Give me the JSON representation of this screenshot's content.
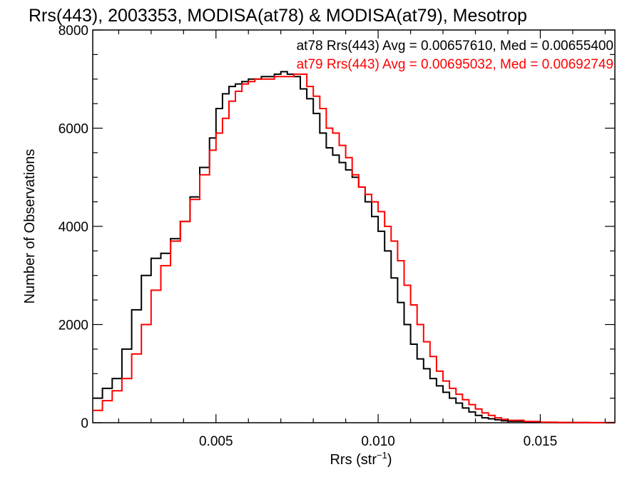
{
  "colors": {
    "at78": "#000000",
    "at79": "#ff0000",
    "axis": "#000000",
    "background": "#ffffff"
  },
  "chart_data": {
    "type": "line",
    "title": "Rrs(443), 2003353, MODISA(at78) & MODISA(at79), Mesotrop",
    "xlabel_main": "Rrs (str",
    "xlabel_sup": "−1",
    "xlabel_end": ")",
    "ylabel": "Number of Observations",
    "xlim": [
      0.0012,
      0.0173
    ],
    "ylim": [
      0,
      8000
    ],
    "x_ticks": [
      {
        "value": 0.005,
        "label": "0.005"
      },
      {
        "value": 0.01,
        "label": "0.010"
      },
      {
        "value": 0.015,
        "label": "0.015"
      }
    ],
    "y_ticks": [
      {
        "value": 0,
        "label": "0"
      },
      {
        "value": 2000,
        "label": "2000"
      },
      {
        "value": 4000,
        "label": "4000"
      },
      {
        "value": 6000,
        "label": "6000"
      },
      {
        "value": 8000,
        "label": "8000"
      }
    ],
    "grid": false,
    "legend_position": "top-right",
    "series": [
      {
        "name": "at78",
        "legend": "at78 Rrs(443) Avg = 0.00657610, Med = 0.00655400",
        "color": "#000000",
        "step": true,
        "x": [
          0.0012,
          0.0015,
          0.0018,
          0.0021,
          0.0024,
          0.0027,
          0.003,
          0.0033,
          0.0036,
          0.0039,
          0.0042,
          0.0045,
          0.0048,
          0.005,
          0.0052,
          0.0054,
          0.0056,
          0.0058,
          0.006,
          0.0062,
          0.0064,
          0.0066,
          0.0068,
          0.007,
          0.0072,
          0.0074,
          0.0076,
          0.0078,
          0.008,
          0.0082,
          0.0084,
          0.0086,
          0.0088,
          0.009,
          0.0092,
          0.0094,
          0.0096,
          0.0098,
          0.01,
          0.0102,
          0.0104,
          0.0106,
          0.0108,
          0.011,
          0.0112,
          0.0114,
          0.0116,
          0.0118,
          0.012,
          0.0122,
          0.0124,
          0.0126,
          0.0128,
          0.013,
          0.0132,
          0.0134,
          0.0136,
          0.0138,
          0.014,
          0.0145,
          0.015,
          0.0155,
          0.016,
          0.0165,
          0.017,
          0.0173
        ],
        "y": [
          500,
          700,
          900,
          1500,
          2300,
          3000,
          3350,
          3450,
          3750,
          4100,
          4600,
          5200,
          5800,
          6400,
          6700,
          6850,
          6900,
          6950,
          7000,
          7000,
          7050,
          7050,
          7100,
          7150,
          7100,
          7050,
          6800,
          6600,
          6300,
          5900,
          5600,
          5450,
          5300,
          5150,
          5000,
          4800,
          4500,
          4200,
          3900,
          3500,
          2950,
          2450,
          2000,
          1600,
          1300,
          1100,
          900,
          750,
          620,
          500,
          400,
          300,
          220,
          150,
          100,
          80,
          60,
          40,
          30,
          15,
          8,
          5,
          3,
          2,
          1,
          1
        ]
      },
      {
        "name": "at79",
        "legend": "at79 Rrs(443) Avg = 0.00695032, Med = 0.00692749",
        "color": "#ff0000",
        "step": true,
        "x": [
          0.0012,
          0.0015,
          0.0018,
          0.0021,
          0.0024,
          0.0027,
          0.003,
          0.0033,
          0.0036,
          0.0039,
          0.0042,
          0.0045,
          0.0048,
          0.005,
          0.0052,
          0.0054,
          0.0056,
          0.0058,
          0.006,
          0.0062,
          0.0064,
          0.0066,
          0.0068,
          0.007,
          0.0072,
          0.0074,
          0.0076,
          0.0078,
          0.008,
          0.0082,
          0.0084,
          0.0086,
          0.0088,
          0.009,
          0.0092,
          0.0094,
          0.0096,
          0.0098,
          0.01,
          0.0102,
          0.0104,
          0.0106,
          0.0108,
          0.011,
          0.0112,
          0.0114,
          0.0116,
          0.0118,
          0.012,
          0.0122,
          0.0124,
          0.0126,
          0.0128,
          0.013,
          0.0132,
          0.0134,
          0.0136,
          0.0138,
          0.014,
          0.0145,
          0.015,
          0.0155,
          0.016,
          0.0165,
          0.017,
          0.0173
        ],
        "y": [
          250,
          450,
          650,
          900,
          1400,
          2000,
          2700,
          3200,
          3700,
          4100,
          4550,
          5050,
          5550,
          5900,
          6200,
          6550,
          6750,
          6900,
          6950,
          7000,
          7000,
          7000,
          7050,
          7050,
          7050,
          7100,
          7100,
          6850,
          6650,
          6400,
          6000,
          5900,
          5650,
          5400,
          5050,
          4800,
          4650,
          4500,
          4300,
          4000,
          3700,
          3300,
          2800,
          2400,
          2000,
          1650,
          1350,
          1050,
          850,
          700,
          580,
          470,
          370,
          280,
          200,
          150,
          100,
          70,
          50,
          25,
          12,
          6,
          3,
          2,
          1,
          1
        ]
      }
    ]
  }
}
